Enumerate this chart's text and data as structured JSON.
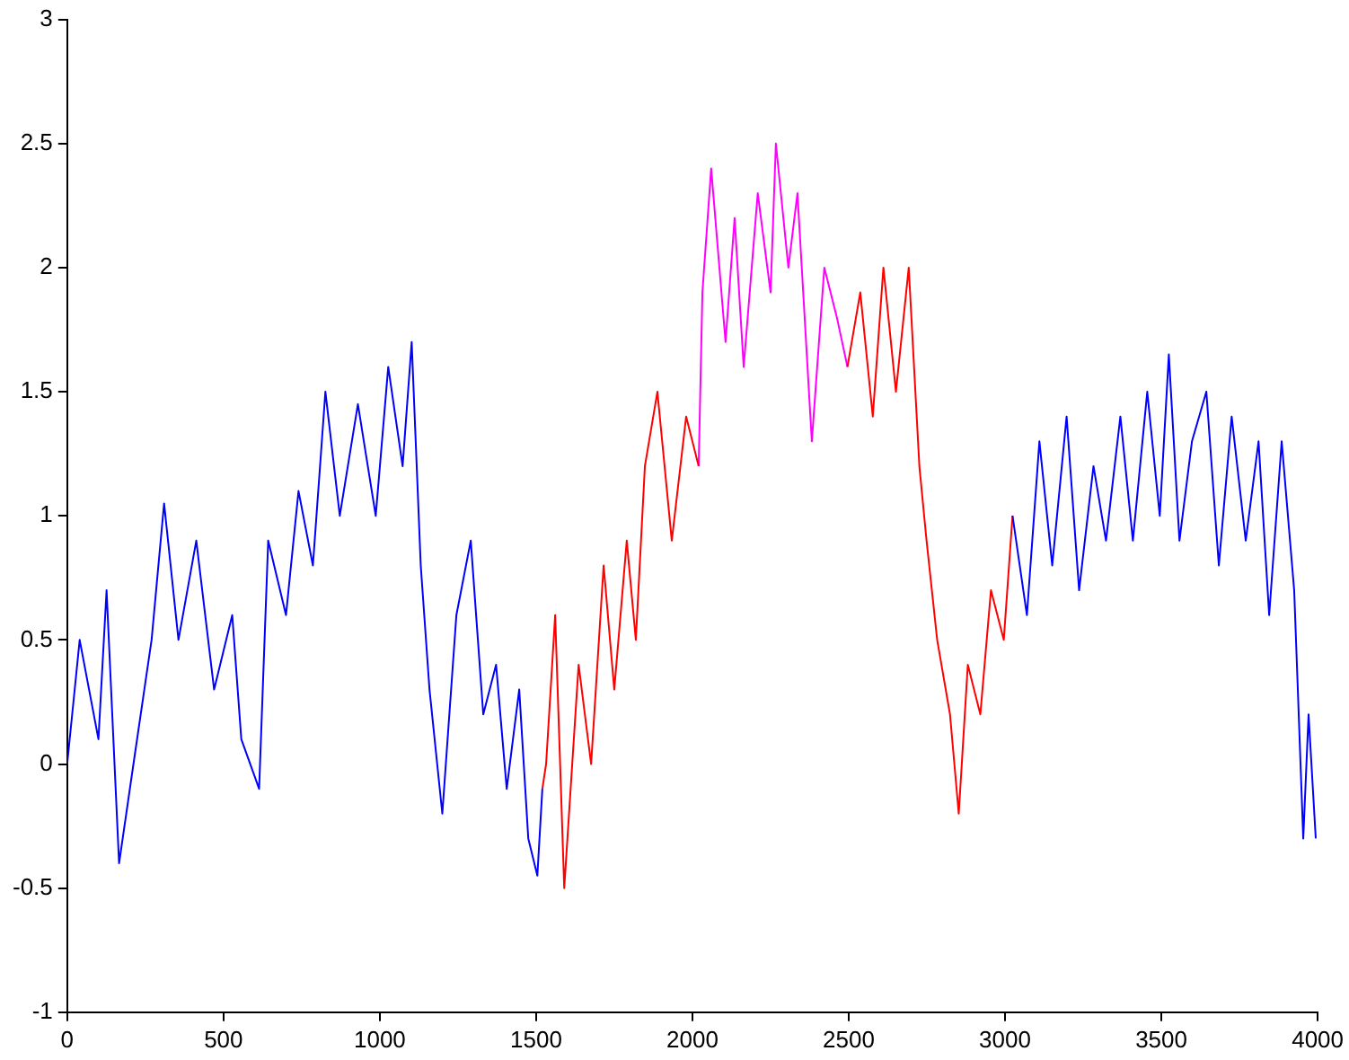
{
  "chart_data": {
    "type": "line",
    "xlim": [
      0,
      4000
    ],
    "xticks": [
      0,
      500,
      1000,
      1500,
      2000,
      2500,
      3000,
      3500,
      4000
    ],
    "ylim": [
      -1,
      3
    ],
    "yticks": [
      -1,
      -0.5,
      0,
      0.5,
      1,
      1.5,
      2,
      2.5,
      3
    ],
    "grid": false,
    "legend": false,
    "marker": "none",
    "line_style": "solid",
    "series": [
      {
        "color": "#0000ff",
        "x": [
          0,
          40,
          100,
          126,
          166,
          212,
          270,
          310,
          356,
          413,
          470,
          528,
          557,
          614,
          643,
          700,
          740,
          786,
          826,
          872,
          930,
          987,
          1027,
          1073,
          1102,
          1131,
          1159,
          1200,
          1245,
          1291,
          1331,
          1372,
          1406,
          1446,
          1475,
          1504,
          1520,
          1522,
          3024,
          3070,
          3110,
          3151,
          3197,
          3237,
          3283,
          3323,
          3369,
          3409,
          3455,
          3495,
          3524,
          3558,
          3598,
          3644,
          3684,
          3725,
          3770,
          3811,
          3845,
          3885,
          3925,
          3954,
          3971,
          3994
        ],
        "values": [
          0,
          0.5,
          0.1,
          0.7,
          -0.4,
          0,
          0.5,
          1.05,
          0.5,
          0.9,
          0.3,
          0.6,
          0.1,
          -0.1,
          0.9,
          0.6,
          1.1,
          0.8,
          1.5,
          1,
          1.45,
          1,
          1.6,
          1.2,
          1.7,
          0.8,
          0.3,
          -0.2,
          0.6,
          0.9,
          0.2,
          0.4,
          -0.1,
          0.3,
          -0.3,
          -0.45,
          -0.1,
          null,
          1,
          0.6,
          1.3,
          0.8,
          1.4,
          0.7,
          1.2,
          0.9,
          1.4,
          0.9,
          1.5,
          1,
          1.65,
          0.9,
          1.3,
          1.5,
          0.8,
          1.4,
          0.9,
          1.3,
          0.6,
          1.3,
          0.7,
          -0.3,
          0.2,
          -0.3
        ]
      },
      {
        "color": "#ff0000",
        "x": [
          1520,
          1532,
          1561,
          1590,
          1636,
          1676,
          1716,
          1750,
          1790,
          1819,
          1848,
          1888,
          1934,
          1980,
          2020,
          2022,
          2496,
          2537,
          2577,
          2611,
          2651,
          2692,
          2726,
          2749,
          2783,
          2824,
          2852,
          2881,
          2921,
          2955,
          2996,
          3024
        ],
        "values": [
          -0.1,
          0,
          0.6,
          -0.5,
          0.4,
          0,
          0.8,
          0.3,
          0.9,
          0.5,
          1.2,
          1.5,
          0.9,
          1.4,
          1.2,
          null,
          1.6,
          1.9,
          1.4,
          2,
          1.5,
          2,
          1.2,
          0.9,
          0.5,
          0.2,
          -0.2,
          0.4,
          0.2,
          0.7,
          0.5,
          1
        ]
      },
      {
        "color": "#ff00ff",
        "x": [
          2020,
          2032,
          2060,
          2106,
          2135,
          2164,
          2209,
          2250,
          2267,
          2307,
          2336,
          2382,
          2422,
          2462,
          2496
        ],
        "values": [
          1.2,
          1.9,
          2.4,
          1.7,
          2.2,
          1.6,
          2.3,
          1.9,
          2.5,
          2,
          2.3,
          1.3,
          2,
          1.8,
          1.6
        ]
      }
    ]
  }
}
